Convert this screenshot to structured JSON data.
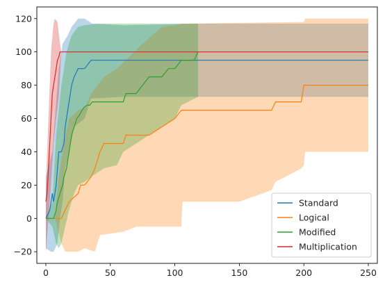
{
  "chart_data": {
    "type": "line",
    "title": "",
    "xlabel": "",
    "ylabel": "",
    "xlim": [
      -7,
      257
    ],
    "ylim": [
      -27,
      127
    ],
    "xticks": [
      0,
      50,
      100,
      150,
      200,
      250
    ],
    "yticks": [
      -20,
      0,
      20,
      40,
      60,
      80,
      100,
      120
    ],
    "xtick_labels": [
      "0",
      "50",
      "100",
      "150",
      "200",
      "250"
    ],
    "ytick_labels": [
      "−20",
      "0",
      "20",
      "40",
      "60",
      "80",
      "100",
      "120"
    ],
    "grid": false,
    "legend_position": "bottom-right",
    "series": [
      {
        "name": "Standard",
        "color": "#1f77b4",
        "x": [
          0,
          3,
          5,
          6,
          8,
          9,
          10,
          12,
          14,
          15,
          17,
          18,
          20,
          22,
          25,
          30,
          35,
          250
        ],
        "y": [
          0,
          5,
          15,
          10,
          20,
          30,
          40,
          40,
          45,
          55,
          65,
          70,
          80,
          85,
          90,
          90,
          95,
          95
        ],
        "band_upper": [
          [
            0,
            25
          ],
          [
            5,
            40
          ],
          [
            8,
            70
          ],
          [
            10,
            90
          ],
          [
            13,
            105
          ],
          [
            17,
            110
          ],
          [
            20,
            115
          ],
          [
            25,
            120
          ],
          [
            30,
            120
          ],
          [
            36,
            117
          ],
          [
            60,
            116
          ],
          [
            120,
            117
          ],
          [
            250,
            117
          ]
        ],
        "band_lower": [
          [
            0,
            -18
          ],
          [
            4,
            -20
          ],
          [
            6,
            -20
          ],
          [
            9,
            -15
          ],
          [
            11,
            0
          ],
          [
            13,
            10
          ],
          [
            15,
            30
          ],
          [
            18,
            40
          ],
          [
            22,
            55
          ],
          [
            30,
            60
          ],
          [
            35,
            72
          ],
          [
            60,
            73
          ],
          [
            250,
            73
          ]
        ]
      },
      {
        "name": "Logical",
        "color": "#ff7f0e",
        "x": [
          0,
          7,
          12,
          15,
          18,
          25,
          27,
          30,
          35,
          38,
          40,
          42,
          45,
          50,
          60,
          62,
          70,
          75,
          80,
          90,
          100,
          105,
          150,
          175,
          178,
          198,
          200,
          250
        ],
        "y": [
          0,
          0,
          0,
          5,
          10,
          15,
          20,
          20,
          25,
          30,
          35,
          40,
          45,
          45,
          45,
          50,
          50,
          50,
          50,
          55,
          60,
          65,
          65,
          65,
          70,
          70,
          80,
          80
        ],
        "band_upper": [
          [
            0,
            0
          ],
          [
            7,
            0
          ],
          [
            10,
            25
          ],
          [
            14,
            45
          ],
          [
            18,
            60
          ],
          [
            25,
            65
          ],
          [
            30,
            66
          ],
          [
            35,
            75
          ],
          [
            45,
            85
          ],
          [
            55,
            90
          ],
          [
            62,
            95
          ],
          [
            75,
            105
          ],
          [
            90,
            115
          ],
          [
            100,
            116
          ],
          [
            105,
            117
          ],
          [
            200,
            118
          ],
          [
            201,
            120
          ],
          [
            250,
            120
          ]
        ],
        "band_lower": [
          [
            0,
            0
          ],
          [
            7,
            0
          ],
          [
            12,
            -15
          ],
          [
            15,
            -20
          ],
          [
            25,
            -20
          ],
          [
            30,
            -18
          ],
          [
            38,
            -20
          ],
          [
            42,
            -10
          ],
          [
            60,
            -8
          ],
          [
            70,
            -5
          ],
          [
            90,
            -5
          ],
          [
            105,
            -5
          ],
          [
            106,
            10
          ],
          [
            150,
            10
          ],
          [
            175,
            17
          ],
          [
            178,
            22
          ],
          [
            198,
            30
          ],
          [
            200,
            32
          ],
          [
            201,
            40
          ],
          [
            250,
            40
          ]
        ]
      },
      {
        "name": "Modified",
        "color": "#2ca02c",
        "x": [
          0,
          6,
          8,
          9,
          11,
          13,
          14,
          16,
          18,
          20,
          22,
          24,
          26,
          28,
          30,
          32,
          34,
          36,
          40,
          45,
          50,
          55,
          60,
          62,
          65,
          70,
          75,
          80,
          85,
          90,
          95,
          100,
          105,
          115,
          118
        ],
        "y": [
          0,
          0,
          5,
          10,
          15,
          20,
          25,
          30,
          40,
          50,
          55,
          60,
          62,
          65,
          67,
          68,
          68,
          70,
          70,
          70,
          70,
          70,
          70,
          75,
          75,
          75,
          80,
          85,
          85,
          85,
          90,
          90,
          95,
          95,
          100
        ],
        "band_upper": [
          [
            0,
            0
          ],
          [
            5,
            10
          ],
          [
            8,
            50
          ],
          [
            12,
            80
          ],
          [
            16,
            100
          ],
          [
            20,
            110
          ],
          [
            25,
            115
          ],
          [
            30,
            116
          ],
          [
            40,
            117
          ],
          [
            60,
            117
          ],
          [
            100,
            117
          ],
          [
            118,
            117
          ]
        ],
        "band_lower": [
          [
            0,
            0
          ],
          [
            5,
            -5
          ],
          [
            8,
            -15
          ],
          [
            10,
            -18
          ],
          [
            12,
            -15
          ],
          [
            15,
            -5
          ],
          [
            18,
            5
          ],
          [
            22,
            15
          ],
          [
            25,
            20
          ],
          [
            30,
            22
          ],
          [
            35,
            25
          ],
          [
            45,
            30
          ],
          [
            55,
            32
          ],
          [
            60,
            40
          ],
          [
            70,
            45
          ],
          [
            80,
            50
          ],
          [
            90,
            55
          ],
          [
            100,
            60
          ],
          [
            105,
            68
          ],
          [
            118,
            73
          ]
        ]
      },
      {
        "name": "Multiplication",
        "color": "#d62728",
        "x": [
          0,
          1,
          2,
          3,
          4,
          5,
          6,
          7,
          8,
          9,
          10,
          11,
          12,
          250
        ],
        "y": [
          10,
          15,
          30,
          45,
          60,
          75,
          80,
          85,
          90,
          95,
          97,
          100,
          100,
          100
        ],
        "band_upper": [
          [
            0,
            20
          ],
          [
            2,
            60
          ],
          [
            4,
            100
          ],
          [
            6,
            117
          ],
          [
            7,
            120
          ],
          [
            9,
            118
          ],
          [
            11,
            105
          ],
          [
            12,
            100
          ]
        ],
        "band_lower": [
          [
            0,
            -20
          ],
          [
            2,
            0
          ],
          [
            4,
            20
          ],
          [
            6,
            45
          ],
          [
            8,
            60
          ],
          [
            10,
            73
          ],
          [
            12,
            100
          ]
        ]
      }
    ]
  }
}
